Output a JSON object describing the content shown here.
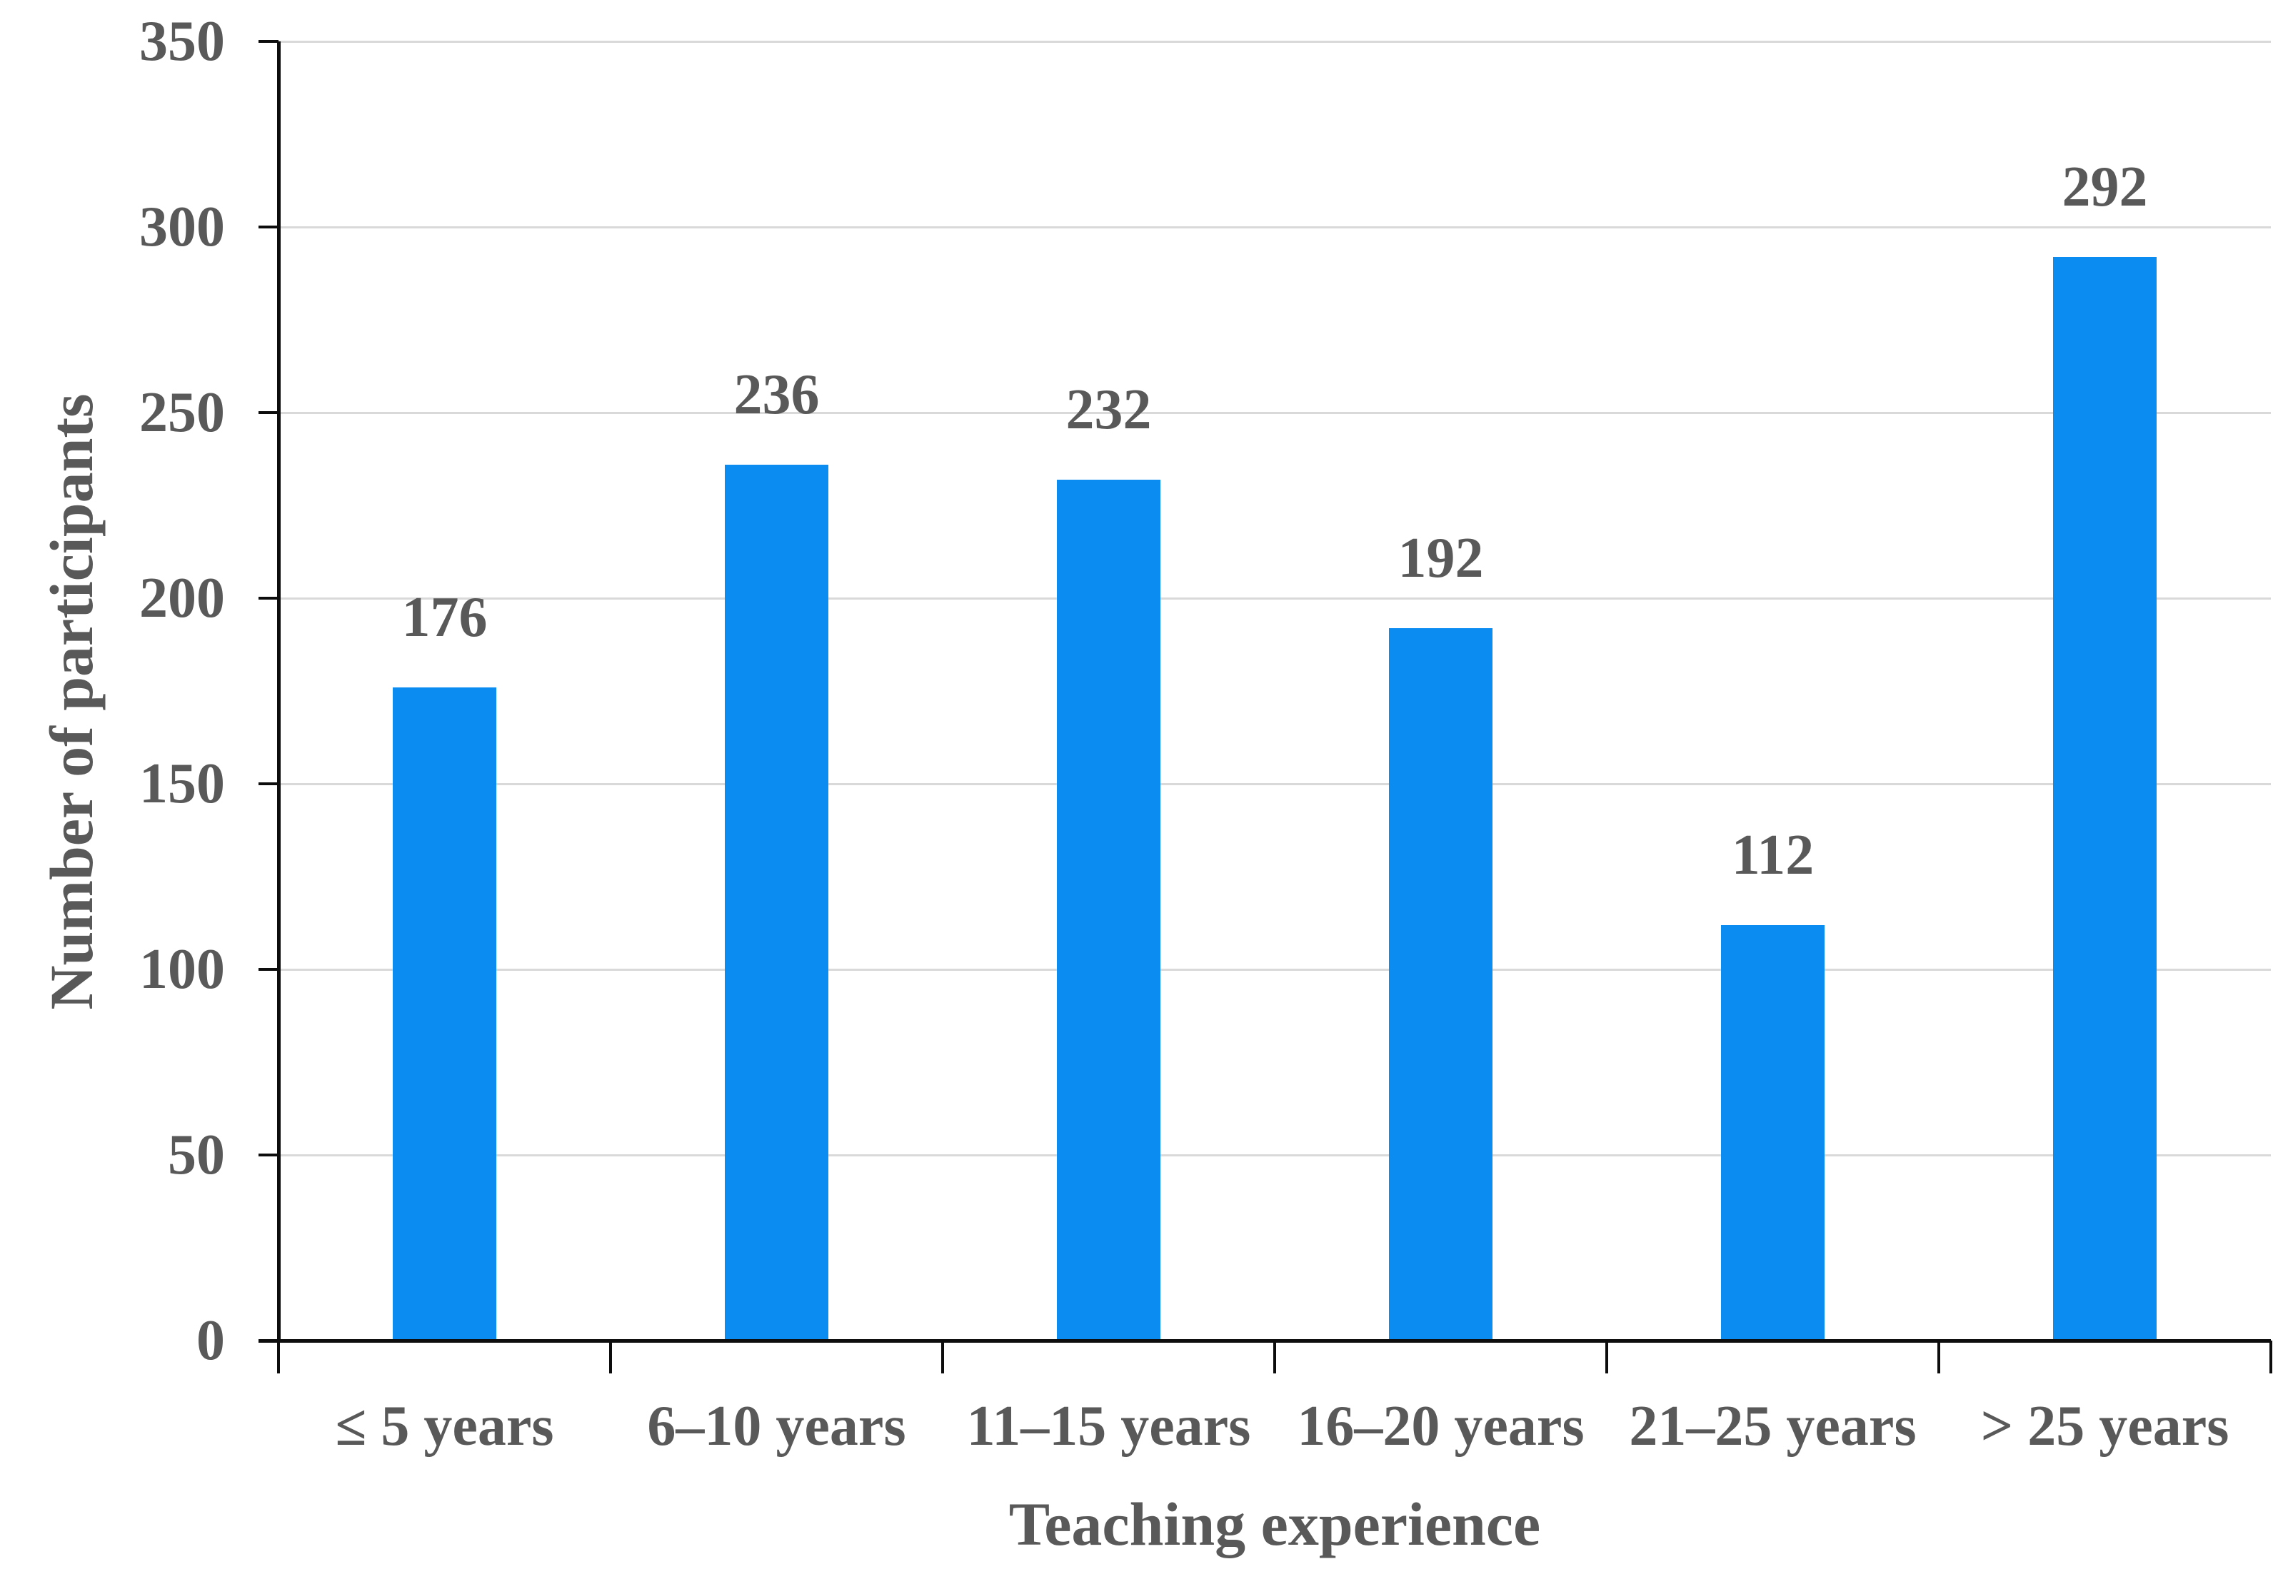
{
  "figure": {
    "background_color": "#ffffff",
    "text_color": "#595959",
    "axis_color": "#0d0d0d",
    "gridline_color": "#d9d9d9",
    "bar_color": "#0a8cf0"
  },
  "chart_data": {
    "type": "bar",
    "title": "",
    "categories": [
      "≤ 5 years",
      "6–10 years",
      "11–15 years",
      "16–20 years",
      "21–25 years",
      "> 25 years"
    ],
    "values": [
      176,
      236,
      232,
      192,
      112,
      292
    ],
    "data_labels": [
      "176",
      "236",
      "232",
      "192",
      "112",
      "292"
    ],
    "xlabel": "Teaching experience",
    "ylabel": "Number of participants",
    "ylim": [
      0,
      350
    ],
    "ytick_step": 50,
    "yticks": [
      0,
      50,
      100,
      150,
      200,
      250,
      300,
      350
    ],
    "grid": true,
    "legend": "none"
  }
}
